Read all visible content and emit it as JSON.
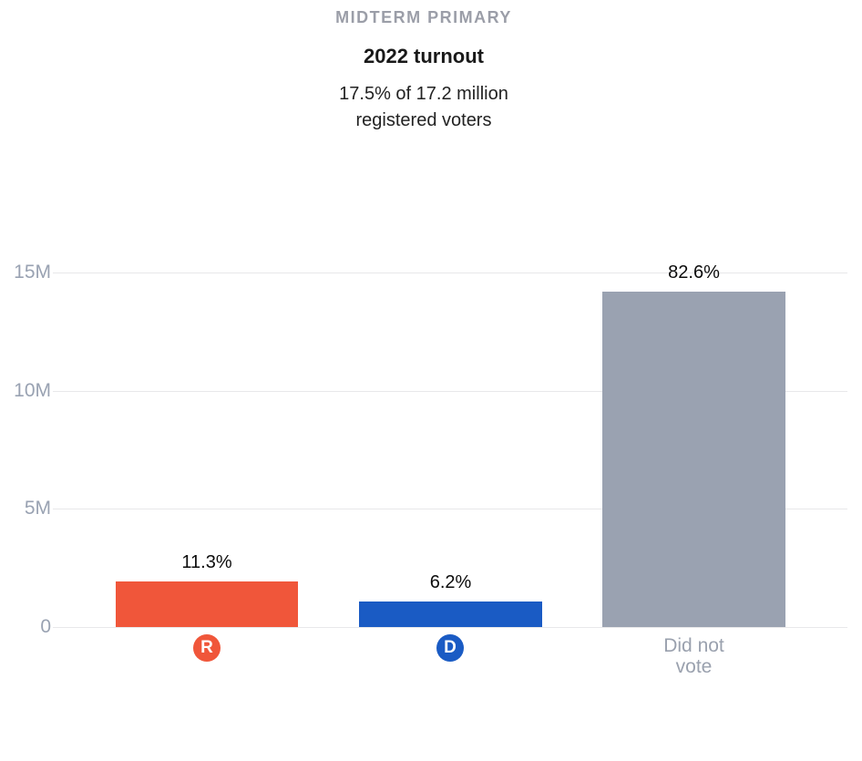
{
  "header": {
    "kicker": "MIDTERM PRIMARY",
    "title": "2022 turnout",
    "subtitle": "17.5% of 17.2 million\nregistered voters"
  },
  "chart_data": {
    "type": "bar",
    "title": "MIDTERM PRIMARY",
    "subtitle": "2022 turnout",
    "note": "17.5% of 17.2 million registered voters",
    "categories": [
      "R",
      "D",
      "Did not vote"
    ],
    "values_millions": [
      1.94,
      1.07,
      14.21
    ],
    "data_labels": [
      "11.3%",
      "6.2%",
      "82.6%"
    ],
    "colors": [
      "#f0563a",
      "#1a5bc4",
      "#9aa2b1"
    ],
    "yticks": [
      "15M",
      "10M",
      "5M",
      "0"
    ],
    "ytick_values_millions": [
      15,
      10,
      5,
      0
    ],
    "ylim_millions": [
      0,
      15.6
    ],
    "xlabel": "",
    "ylabel": "registered voters",
    "grid": true,
    "legend": false
  },
  "x_labels": [
    {
      "type": "badge",
      "letter": "R",
      "color": "#f0563a"
    },
    {
      "type": "badge",
      "letter": "D",
      "color": "#1a5bc4"
    },
    {
      "type": "text",
      "text": "Did not\nvote"
    }
  ],
  "style_colors": {
    "axis_text": "#99a2b2",
    "gridline": "#e8e8ea",
    "kicker_text": "#9b9ea8",
    "xlabel_text": "#9aa1ae"
  }
}
